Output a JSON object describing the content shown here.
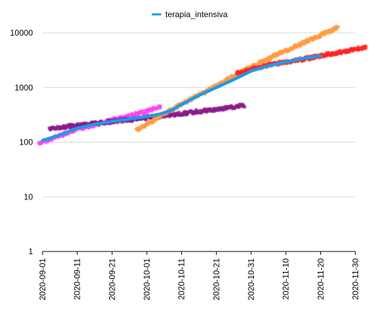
{
  "chart_data": {
    "type": "line",
    "title": "",
    "xlabel": "",
    "ylabel": "",
    "y_scale": "log",
    "ylim": [
      1,
      20000
    ],
    "xlim": [
      "2020-09-01",
      "2020-11-30"
    ],
    "grid": "horizontal",
    "legend_position": "top-center",
    "y_ticks": [
      {
        "value": 1,
        "label": "1"
      },
      {
        "value": 10,
        "label": "10"
      },
      {
        "value": 100,
        "label": "100"
      },
      {
        "value": 1000,
        "label": "1000"
      },
      {
        "value": 10000,
        "label": "10000"
      }
    ],
    "x_ticks": [
      "2020-09-01",
      "2020-09-11",
      "2020-09-21",
      "2020-10-01",
      "2020-10-11",
      "2020-10-21",
      "2020-10-31",
      "2020-11-10",
      "2020-11-20",
      "2020-11-30"
    ],
    "series": [
      {
        "name": "terapia_intensiva",
        "color": "#1a9bea",
        "style": "line",
        "x": [
          "2020-09-01",
          "2020-09-06",
          "2020-09-11",
          "2020-09-16",
          "2020-09-21",
          "2020-09-26",
          "2020-10-01",
          "2020-10-05",
          "2020-10-08",
          "2020-10-11",
          "2020-10-16",
          "2020-10-21",
          "2020-10-26",
          "2020-10-31",
          "2020-11-05",
          "2020-11-10",
          "2020-11-15",
          "2020-11-20"
        ],
        "y": [
          107,
          135,
          180,
          212,
          240,
          265,
          295,
          330,
          380,
          490,
          720,
          1000,
          1400,
          2000,
          2500,
          2950,
          3400,
          3800
        ]
      },
      {
        "color": "#ff44ee",
        "style": "markers",
        "x": [
          "2020-08-31",
          "2020-09-10",
          "2020-09-20",
          "2020-09-30",
          "2020-10-05"
        ],
        "y": [
          95,
          165,
          245,
          350,
          450
        ]
      },
      {
        "color": "#8b1a89",
        "style": "markers",
        "x": [
          "2020-09-03",
          "2020-09-13",
          "2020-09-23",
          "2020-10-03",
          "2020-10-13",
          "2020-10-23",
          "2020-10-29"
        ],
        "y": [
          175,
          210,
          245,
          290,
          345,
          410,
          470
        ]
      },
      {
        "color": "#ff9a40",
        "style": "markers",
        "x": [
          "2020-09-28",
          "2020-10-08",
          "2020-10-18",
          "2020-10-28",
          "2020-11-07",
          "2020-11-17",
          "2020-11-25"
        ],
        "y": [
          165,
          390,
          850,
          1900,
          3900,
          7500,
          12500
        ]
      },
      {
        "color": "#ff2222",
        "style": "markers",
        "x": [
          "2020-10-27",
          "2020-11-06",
          "2020-11-16",
          "2020-11-26",
          "2020-12-03"
        ],
        "y": [
          1850,
          2650,
          3400,
          4500,
          5500
        ]
      }
    ]
  }
}
